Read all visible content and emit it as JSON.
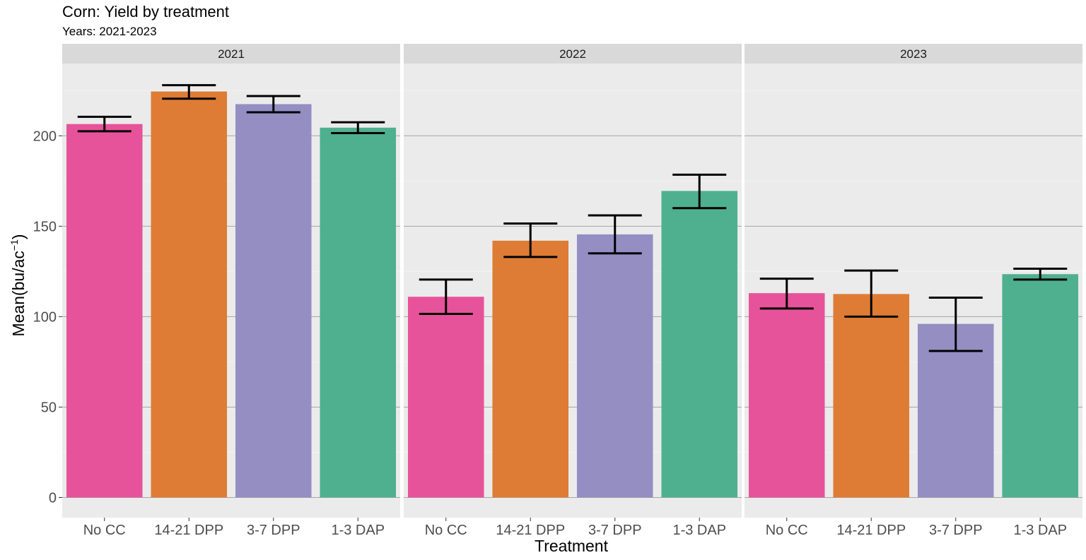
{
  "chart_data": {
    "type": "bar",
    "title": "Corn: Yield by treatment",
    "subtitle": "Years: 2021-2023",
    "xlabel": "Treatment",
    "ylabel": "Mean(bu/ac",
    "ylabel_superscript": "−1",
    "ylabel_close": ")",
    "ylim": [
      -11,
      240
    ],
    "yticks": [
      0,
      50,
      100,
      150,
      200
    ],
    "grid": true,
    "legend": "none",
    "categories": [
      "No CC",
      "14-21 DPP",
      "3-7 DPP",
      "1-3 DAP"
    ],
    "colors": [
      "#e7539a",
      "#de7c35",
      "#958ec3",
      "#4fb090"
    ],
    "panels": [
      {
        "name": "2021",
        "values": [
          206.5,
          224.5,
          217.5,
          204.5
        ],
        "err_low": [
          202.5,
          220.5,
          213,
          201.5
        ],
        "err_high": [
          210.5,
          228,
          222,
          207.5
        ]
      },
      {
        "name": "2022",
        "values": [
          111,
          142,
          145.5,
          169.5
        ],
        "err_low": [
          101.5,
          133,
          135,
          160
        ],
        "err_high": [
          120.5,
          151.5,
          156,
          178.5
        ]
      },
      {
        "name": "2023",
        "values": [
          113,
          112.5,
          96,
          123.5
        ],
        "err_low": [
          104.5,
          100,
          81,
          120.5
        ],
        "err_high": [
          121,
          125.5,
          110.5,
          126.5
        ]
      }
    ]
  }
}
